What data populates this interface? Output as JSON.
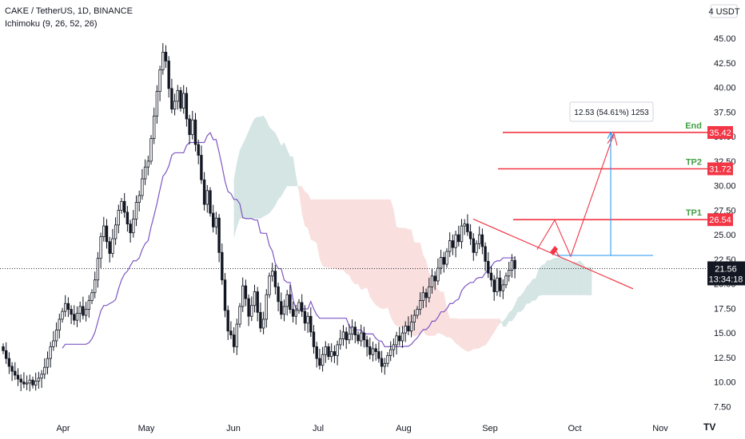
{
  "header": {
    "symbol_line": "CAKE / TetherUS, 1D, BINANCE",
    "indicator_line": "Ichimoku (9, 26, 52, 26)"
  },
  "axis_currency": "USDT",
  "chart_data": {
    "type": "candlestick",
    "symbol": "CAKE / TetherUS",
    "interval": "1D",
    "exchange": "BINANCE",
    "y_ticks": [
      7.5,
      10,
      12.5,
      15,
      17.5,
      20,
      22.5,
      25,
      27.5,
      30,
      32.5,
      35,
      37.5,
      40,
      42.5,
      45
    ],
    "y_tick_labels": [
      "7.50",
      "10.00",
      "12.50",
      "15.00",
      "17.50",
      "20.00",
      "22.50",
      "25.00",
      "27.50",
      "30.00",
      "32.50",
      "35.00",
      "37.50",
      "40.00",
      "42.50",
      "45.00"
    ],
    "ylim": [
      5.5,
      47.5
    ],
    "x_tick_labels": [
      "Apr",
      "May",
      "Jun",
      "Jul",
      "Aug",
      "Sep",
      "Oct",
      "Nov"
    ],
    "current_price": "21.56",
    "countdown": "13:34:18",
    "close_series": [
      13.2,
      12.4,
      11.6,
      11.1,
      10.7,
      10.3,
      10.0,
      9.8,
      9.9,
      10.2,
      9.7,
      10.1,
      10.4,
      10.8,
      11.5,
      12.4,
      13.6,
      14.2,
      15.3,
      16.4,
      17.2,
      18.0,
      17.4,
      16.9,
      16.3,
      17.0,
      17.7,
      16.8,
      17.4,
      18.3,
      19.1,
      20.4,
      22.6,
      24.8,
      25.9,
      24.3,
      23.1,
      24.6,
      26.0,
      27.5,
      28.4,
      27.3,
      26.1,
      25.2,
      26.6,
      28.3,
      29.0,
      30.7,
      31.9,
      32.5,
      34.8,
      37.1,
      39.6,
      41.8,
      43.6,
      42.7,
      39.9,
      37.8,
      38.6,
      39.7,
      37.9,
      39.4,
      36.8,
      35.2,
      36.7,
      34.2,
      33.1,
      30.6,
      28.1,
      29.5,
      27.2,
      25.8,
      26.7,
      23.2,
      20.4,
      17.3,
      15.2,
      14.8,
      13.6,
      15.9,
      17.7,
      19.8,
      18.5,
      16.7,
      17.8,
      19.2,
      17.1,
      15.5,
      16.4,
      18.9,
      20.8,
      21.3,
      19.7,
      18.2,
      16.9,
      17.7,
      18.9,
      17.4,
      16.7,
      17.3,
      18.1,
      17.2,
      16.0,
      16.7,
      15.1,
      13.6,
      12.4,
      11.7,
      12.8,
      13.6,
      12.6,
      13.1,
      12.7,
      13.8,
      14.4,
      15.1,
      14.3,
      14.9,
      15.6,
      14.8,
      14.2,
      15.0,
      14.3,
      13.6,
      12.8,
      13.4,
      13.1,
      12.4,
      11.6,
      11.9,
      12.7,
      13.3,
      13.8,
      14.7,
      14.2,
      15.0,
      15.7,
      15.2,
      16.1,
      16.8,
      17.4,
      18.3,
      19.1,
      18.6,
      19.7,
      20.8,
      20.3,
      21.6,
      22.7,
      22.0,
      23.3,
      24.4,
      23.7,
      25.0,
      24.3,
      25.9,
      26.1,
      25.3,
      24.6,
      23.2,
      24.1,
      25.0,
      23.8,
      22.3,
      21.1,
      20.4,
      19.2,
      20.6,
      19.3,
      19.9,
      20.8,
      21.4,
      22.4,
      21.56
    ],
    "annotations": {
      "levels": [
        {
          "label": "End",
          "value": "35.42",
          "price": 35.42
        },
        {
          "label": "TP2",
          "value": "31.72",
          "price": 31.72
        },
        {
          "label": "TP1",
          "value": "26.54",
          "price": 26.54
        }
      ],
      "measure_label": "12.53 (54.61%) 1253"
    }
  },
  "colors": {
    "up": "#26a69a",
    "down": "#131722",
    "kumo_bull": "#9fc6c0",
    "kumo_bear": "#f2b8b5",
    "kijun": "#7e57c2",
    "target_line": "#f23645",
    "level_label": "#43a047",
    "measure": "#2196f3",
    "price_tag": "#131722"
  },
  "logo": "TV"
}
